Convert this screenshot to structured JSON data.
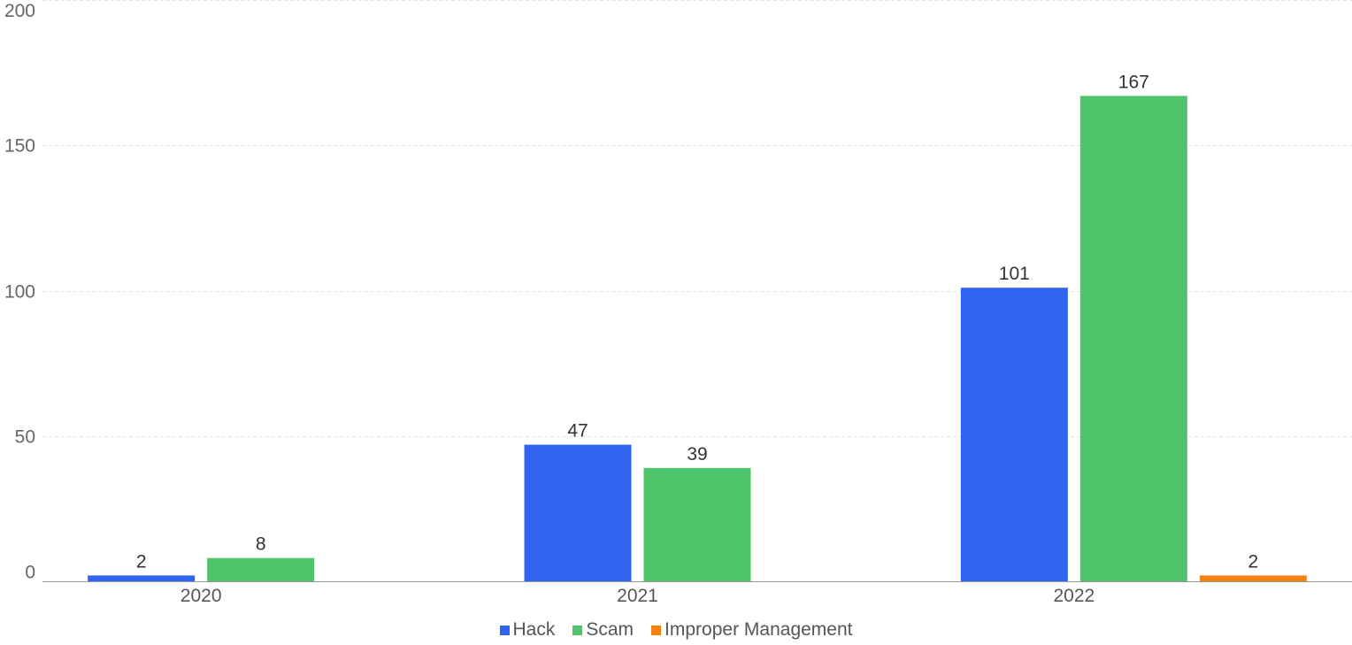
{
  "chart_data": {
    "type": "bar",
    "categories": [
      "2020",
      "2021",
      "2022"
    ],
    "series": [
      {
        "name": "Hack",
        "color": "#2f63f0",
        "values": [
          2,
          47,
          101
        ]
      },
      {
        "name": "Scam",
        "color": "#4fc56b",
        "values": [
          8,
          39,
          167
        ]
      },
      {
        "name": "Improper Management",
        "color": "#f5820f",
        "values": [
          null,
          null,
          2
        ]
      }
    ],
    "y_ticks": [
      "0",
      "50",
      "100",
      "150",
      "200"
    ],
    "ylim": [
      0,
      200
    ],
    "grid": true,
    "legend_position": "bottom"
  }
}
